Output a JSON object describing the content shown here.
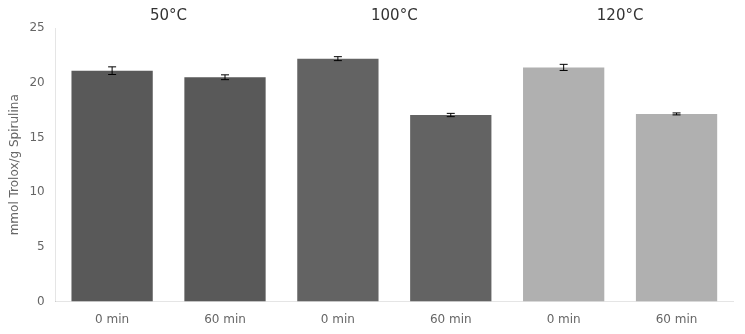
{
  "chart_data": {
    "type": "bar",
    "ylabel": "mmol Trolox/g Spirulina",
    "categories": [
      "0 min",
      "60 min",
      "0 min",
      "60 min",
      "0 min",
      "60 min"
    ],
    "values": [
      21.1,
      20.5,
      22.2,
      17.05,
      21.4,
      17.15
    ],
    "errors": [
      0.35,
      0.22,
      0.18,
      0.15,
      0.28,
      0.09
    ],
    "colors": [
      "#595959",
      "#595959",
      "#636363",
      "#636363",
      "#b0b0b0",
      "#b0b0b0"
    ],
    "annotations": [
      "50°C",
      "100°C",
      "120°C"
    ],
    "ylim": [
      0,
      25
    ],
    "yticks": [
      0,
      5,
      10,
      15,
      20,
      25
    ],
    "grid": false
  }
}
